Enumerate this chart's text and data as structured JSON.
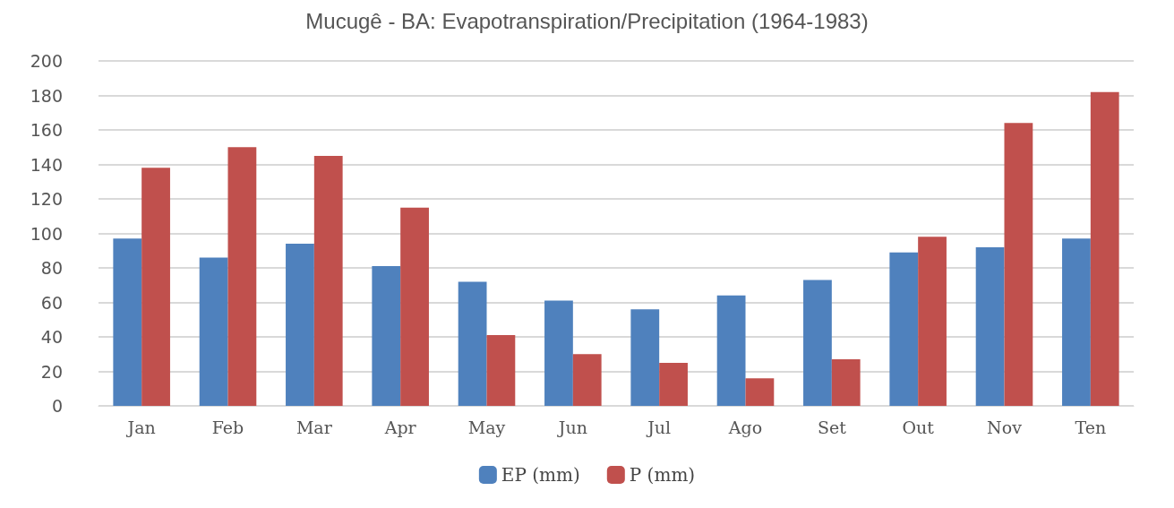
{
  "chart_data": {
    "type": "bar",
    "title": "Mucugê - BA: Evapotranspiration/Precipitation (1964-1983)",
    "categories": [
      "Jan",
      "Feb",
      "Mar",
      "Apr",
      "May",
      "Jun",
      "Jul",
      "Ago",
      "Set",
      "Out",
      "Nov",
      "Ten"
    ],
    "series": [
      {
        "name": "EP (mm)",
        "color": "#4f81bd",
        "values": [
          97,
          86,
          94,
          81,
          72,
          61,
          56,
          64,
          73,
          89,
          92,
          97
        ]
      },
      {
        "name": "P (mm)",
        "color": "#c0504d",
        "values": [
          138,
          150,
          145,
          115,
          41,
          30,
          25,
          16,
          27,
          98,
          164,
          182
        ]
      }
    ],
    "ylim": [
      0,
      200
    ],
    "yticks": [
      0,
      20,
      40,
      60,
      80,
      100,
      120,
      140,
      160,
      180,
      200
    ],
    "grid": "y",
    "legend": "bottom"
  }
}
